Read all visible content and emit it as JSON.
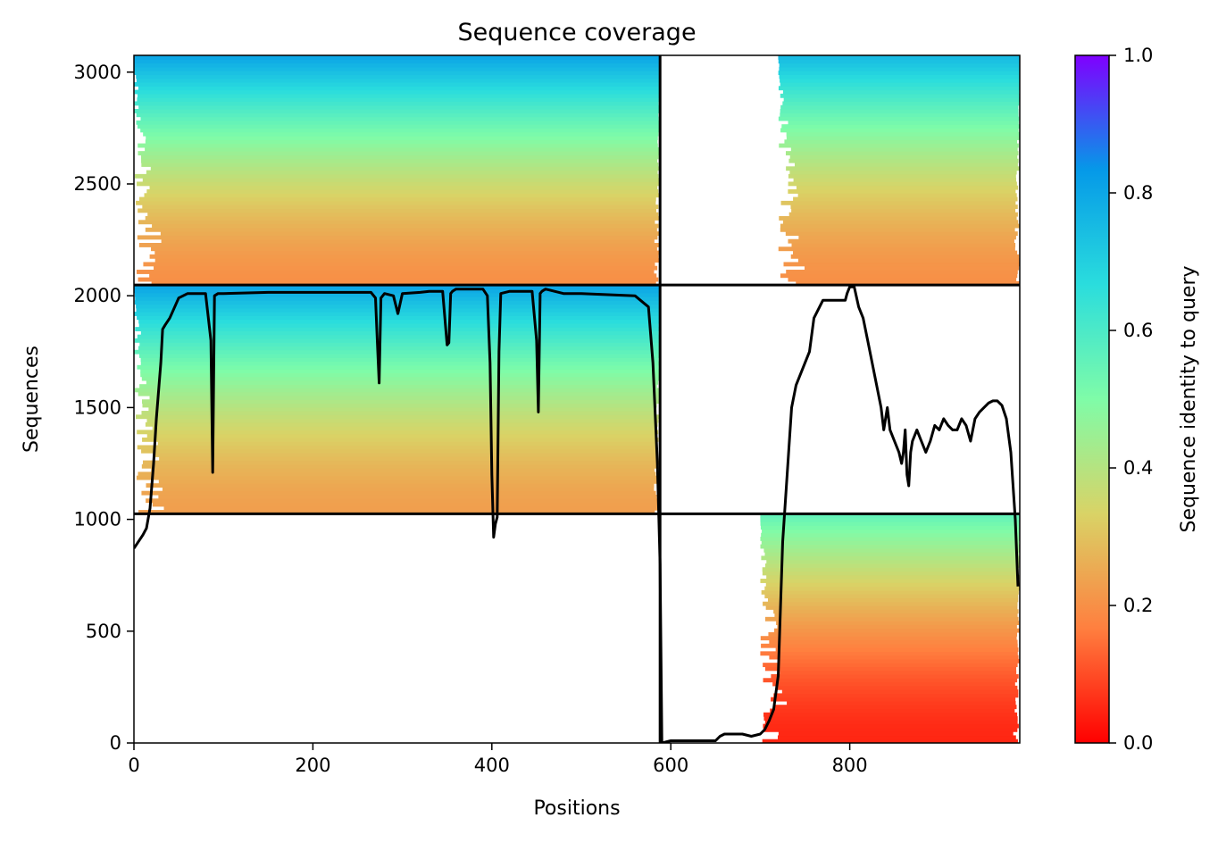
{
  "chart_data": {
    "type": "heatmap",
    "title": "Sequence coverage",
    "xlabel": "Positions",
    "ylabel": "Sequences",
    "xlim": [
      0,
      990
    ],
    "ylim": [
      0,
      3075
    ],
    "x_ticks": [
      {
        "value": 0,
        "label": "0"
      },
      {
        "value": 200,
        "label": "200"
      },
      {
        "value": 400,
        "label": "400"
      },
      {
        "value": 600,
        "label": "600"
      },
      {
        "value": 800,
        "label": "800"
      }
    ],
    "y_ticks": [
      {
        "value": 0,
        "label": "0"
      },
      {
        "value": 500,
        "label": "500"
      },
      {
        "value": 1000,
        "label": "1000"
      },
      {
        "value": 1500,
        "label": "1500"
      },
      {
        "value": 2000,
        "label": "2000"
      },
      {
        "value": 2500,
        "label": "2500"
      },
      {
        "value": 3000,
        "label": "3000"
      }
    ],
    "colormap": "rainbow_r",
    "colormap_stops": [
      "#ff0000",
      "#ff7f3f",
      "#d9d366",
      "#7ffca8",
      "#2adddd",
      "#0599e8",
      "#7f00ff"
    ],
    "colorbar": {
      "label": "Sequence identity to query",
      "range": [
        0,
        1
      ],
      "ticks": [
        {
          "value": 0.0,
          "label": "0.0"
        },
        {
          "value": 0.2,
          "label": "0.2"
        },
        {
          "value": 0.4,
          "label": "0.4"
        },
        {
          "value": 0.6,
          "label": "0.6"
        },
        {
          "value": 0.8,
          "label": "0.8"
        },
        {
          "value": 1.0,
          "label": "1.0"
        }
      ]
    },
    "chain_boundaries": {
      "x": [
        588
      ],
      "y": [
        1025,
        2048
      ]
    },
    "coverage_blocks": [
      {
        "x": [
          0,
          588
        ],
        "y": [
          2048,
          3075
        ],
        "identity": [
          0.2,
          0.8
        ],
        "ragged_start": true
      },
      {
        "x": [
          720,
          990
        ],
        "y": [
          2048,
          3075
        ],
        "identity": [
          0.2,
          0.75
        ],
        "ragged_start": true
      },
      {
        "x": [
          0,
          588
        ],
        "y": [
          1025,
          2048
        ],
        "identity": [
          0.23,
          0.8
        ],
        "ragged_start": true
      },
      {
        "x": [
          700,
          990
        ],
        "y": [
          0,
          1025
        ],
        "identity": [
          0.05,
          0.55
        ],
        "ragged_start": true
      }
    ],
    "coverage_line": {
      "name": "coverage",
      "color": "#000000",
      "x": [
        0,
        5,
        10,
        14,
        18,
        22,
        25,
        28,
        30,
        32,
        35,
        40,
        50,
        60,
        70,
        80,
        86,
        88,
        90,
        94,
        100,
        150,
        200,
        250,
        265,
        270,
        272,
        274,
        276,
        280,
        290,
        295,
        300,
        320,
        330,
        345,
        350,
        352,
        354,
        356,
        360,
        375,
        390,
        395,
        398,
        400,
        402,
        404,
        406,
        408,
        410,
        420,
        430,
        445,
        450,
        452,
        454,
        456,
        460,
        480,
        500,
        560,
        575,
        580,
        585,
        588,
        590,
        600,
        620,
        650,
        655,
        660,
        670,
        680,
        690,
        700,
        705,
        710,
        715,
        720,
        725,
        730,
        735,
        740,
        745,
        750,
        755,
        760,
        770,
        780,
        790,
        795,
        797,
        800,
        805,
        810,
        815,
        820,
        825,
        830,
        835,
        838,
        840,
        842,
        845,
        850,
        855,
        858,
        860,
        862,
        864,
        866,
        868,
        870,
        875,
        880,
        885,
        890,
        895,
        900,
        905,
        910,
        915,
        920,
        925,
        930,
        935,
        940,
        945,
        950,
        955,
        960,
        965,
        970,
        975,
        980,
        985,
        988
      ],
      "y": [
        870,
        900,
        930,
        960,
        1050,
        1250,
        1450,
        1600,
        1700,
        1850,
        1870,
        1900,
        1990,
        2010,
        2010,
        2010,
        1800,
        1210,
        2000,
        2010,
        2010,
        2015,
        2015,
        2015,
        2015,
        1990,
        1800,
        1610,
        1990,
        2010,
        2000,
        1920,
        2010,
        2015,
        2020,
        2020,
        1780,
        1790,
        2010,
        2020,
        2030,
        2030,
        2030,
        2000,
        1700,
        1200,
        920,
        980,
        1010,
        1750,
        2010,
        2020,
        2020,
        2020,
        1800,
        1480,
        2010,
        2020,
        2030,
        2010,
        2010,
        2000,
        1950,
        1700,
        1250,
        800,
        0,
        10,
        10,
        10,
        30,
        40,
        40,
        40,
        30,
        40,
        60,
        100,
        150,
        300,
        900,
        1200,
        1500,
        1600,
        1650,
        1700,
        1750,
        1900,
        1980,
        1980,
        1980,
        1980,
        2010,
        2040,
        2040,
        1950,
        1900,
        1800,
        1700,
        1600,
        1500,
        1400,
        1450,
        1500,
        1400,
        1350,
        1300,
        1250,
        1300,
        1400,
        1200,
        1150,
        1300,
        1350,
        1400,
        1350,
        1300,
        1350,
        1420,
        1400,
        1450,
        1420,
        1400,
        1400,
        1450,
        1420,
        1350,
        1450,
        1480,
        1500,
        1520,
        1530,
        1530,
        1510,
        1450,
        1300,
        1000,
        700
      ]
    }
  }
}
